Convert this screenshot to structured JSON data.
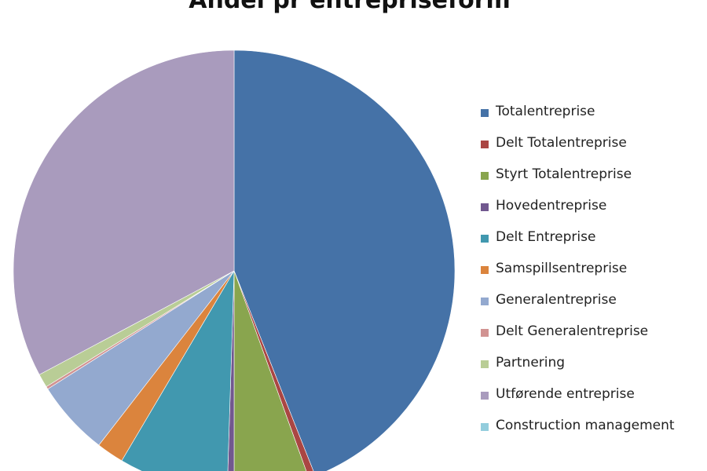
{
  "chart_data": {
    "type": "pie",
    "title": "Andel pr entrepriseform",
    "unit": "percent (estimated)",
    "legend_position": "right",
    "slices": [
      {
        "label": "Totalentreprise",
        "value": 44,
        "color": "#4572A7"
      },
      {
        "label": "Delt Totalentreprise",
        "value": 0.5,
        "color": "#AA4643"
      },
      {
        "label": "Styrt Totalentreprise",
        "value": 5.5,
        "color": "#89A54E"
      },
      {
        "label": "Hovedentreprise",
        "value": 0.5,
        "color": "#71588F"
      },
      {
        "label": "Delt Entreprise",
        "value": 8,
        "color": "#4198AF"
      },
      {
        "label": "Samspillsentreprise",
        "value": 2,
        "color": "#DB843D"
      },
      {
        "label": "Generalentreprise",
        "value": 5.5,
        "color": "#93A9CF"
      },
      {
        "label": "Delt Generalentreprise",
        "value": 0.2,
        "color": "#D19392"
      },
      {
        "label": "Partnering",
        "value": 1,
        "color": "#B9CD96"
      },
      {
        "label": "Utførende entreprise",
        "value": 32.8,
        "color": "#A99BBD"
      },
      {
        "label": "Construction management",
        "value": 0,
        "color": "#93CDDD"
      }
    ]
  }
}
